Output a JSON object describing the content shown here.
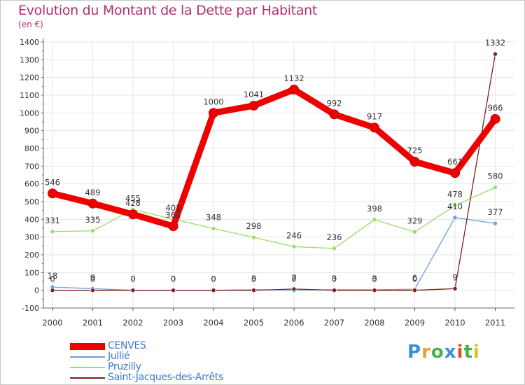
{
  "header": {
    "title": "Evolution du Montant de la Dette par Habitant",
    "unit": "(en €)"
  },
  "brand": {
    "letters": [
      "P",
      "r",
      "o",
      "x",
      "i",
      "t",
      "i"
    ],
    "colors": [
      "#3b8fd6",
      "#f0a020",
      "#4bb04b",
      "#3b8fd6",
      "#e05020",
      "#4bb04b",
      "#e0c020"
    ]
  },
  "chart_data": {
    "type": "line",
    "x": [
      "2000",
      "2001",
      "2002",
      "2003",
      "2004",
      "2005",
      "2006",
      "2007",
      "2008",
      "2009",
      "2010",
      "2011"
    ],
    "ylim": [
      -100,
      1400
    ],
    "yticks": [
      -100,
      0,
      100,
      200,
      300,
      400,
      500,
      600,
      700,
      800,
      900,
      1000,
      1100,
      1200,
      1300,
      1400
    ],
    "grid": true,
    "legend_position": "bottom-left",
    "series": [
      {
        "name": "CENVES",
        "color": "#ee0000",
        "values": [
          546,
          489,
          428,
          361,
          1000,
          1041,
          1132,
          992,
          917,
          725,
          661,
          966
        ],
        "labels": [
          "546",
          "489",
          "428",
          "361",
          "1000",
          "1041",
          "1132",
          "992",
          "917",
          "725",
          "661",
          "966"
        ]
      },
      {
        "name": "Jullié",
        "color": "#6aa0d8",
        "values": [
          18,
          9,
          0,
          0,
          0,
          3,
          0,
          3,
          3,
          6,
          410,
          377
        ],
        "labels": [
          "18",
          "9",
          "0",
          "0",
          "0",
          "3",
          "0",
          "3",
          "3",
          "6",
          "410",
          "377"
        ]
      },
      {
        "name": "Pruzilly",
        "color": "#99dd66",
        "values": [
          331,
          335,
          455,
          401,
          348,
          298,
          246,
          236,
          398,
          329,
          478,
          580
        ],
        "labels": [
          "331",
          "335",
          "455",
          "401",
          "348",
          "298",
          "246",
          "236",
          "398",
          "329",
          "478",
          "580"
        ]
      },
      {
        "name": "Saint-Jacques-des-Arrêts",
        "color": "#7a2020",
        "values": [
          0,
          0,
          0,
          0,
          0,
          0,
          7,
          0,
          0,
          0,
          9,
          1332
        ],
        "labels": [
          "0",
          "0",
          "0",
          "0",
          "0",
          "0",
          "7",
          "0",
          "0",
          "0",
          "9",
          "1332"
        ]
      }
    ]
  }
}
